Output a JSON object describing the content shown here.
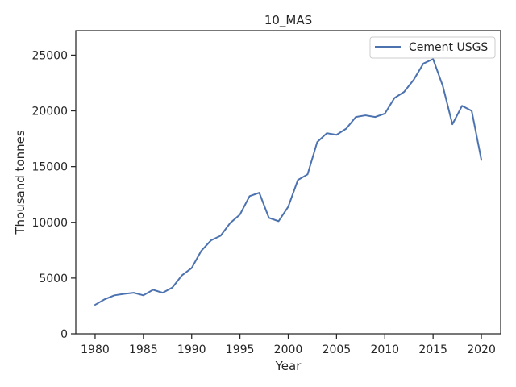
{
  "chart_data": {
    "type": "line",
    "title": "10_MAS",
    "xlabel": "Year",
    "ylabel": "Thousand tonnes",
    "xlim": [
      1978,
      2022
    ],
    "ylim": [
      0,
      27200
    ],
    "xticks": [
      1980,
      1985,
      1990,
      1995,
      2000,
      2005,
      2010,
      2015,
      2020
    ],
    "yticks": [
      0,
      5000,
      10000,
      15000,
      20000,
      25000
    ],
    "grid": false,
    "legend": "top-right",
    "series": [
      {
        "name": "Cement USGS",
        "color": "#4c72b0",
        "x": [
          1980,
          1981,
          1982,
          1983,
          1984,
          1985,
          1986,
          1987,
          1988,
          1989,
          1990,
          1991,
          1992,
          1993,
          1994,
          1995,
          1996,
          1997,
          1998,
          1999,
          2000,
          2001,
          2002,
          2003,
          2004,
          2005,
          2006,
          2007,
          2008,
          2009,
          2010,
          2011,
          2012,
          2013,
          2014,
          2015,
          2016,
          2017,
          2018,
          2019,
          2020
        ],
        "values": [
          2600,
          3100,
          3450,
          3580,
          3680,
          3450,
          3950,
          3680,
          4150,
          5250,
          5900,
          7450,
          8380,
          8800,
          9950,
          10700,
          12350,
          12650,
          10400,
          10100,
          11400,
          13800,
          14300,
          17200,
          18000,
          17850,
          18400,
          19450,
          19600,
          19450,
          19750,
          21150,
          21700,
          22800,
          24250,
          24650,
          22250,
          18800,
          20450,
          20000,
          15600
        ]
      }
    ]
  }
}
